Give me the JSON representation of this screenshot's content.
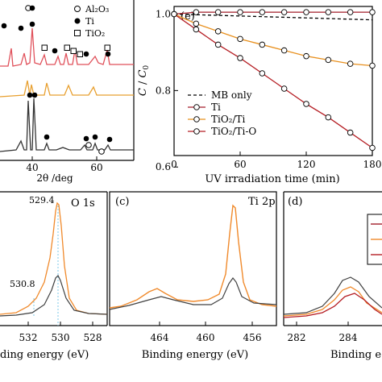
{
  "colors": {
    "ti": "#a31f2a",
    "tio2_ti": "#e8901e",
    "tio2_ti_o": "#b51e24",
    "xrd_red": "#e0505a",
    "xrd_orange": "#e8a030",
    "xrd_black": "#333333",
    "xps_orange": "#f08a2c",
    "xps_black": "#404040",
    "xps_ref": "#7ec8e8"
  },
  "xrd": {
    "xlabel": "2θ /deg",
    "xticks": [
      "40",
      "60"
    ],
    "legend": [
      {
        "marker": "open-circle",
        "label": "Al₂O₃"
      },
      {
        "marker": "filled-circle",
        "label": "Ti"
      },
      {
        "marker": "open-square",
        "label": "TiO₂"
      }
    ]
  },
  "panel_e": {
    "label": "(e)",
    "xlabel": "UV irradiation time (min)",
    "ylabel_c": "C",
    "ylabel_slash": " / ",
    "ylabel_c0": "C",
    "ylabel_sub": "0",
    "xticks": [
      "0",
      "60",
      "120",
      "180"
    ],
    "yticks": [
      "1.0",
      "0.8",
      "0.6"
    ],
    "legend": [
      {
        "style": "dashed",
        "label": "MB only"
      },
      {
        "style": "ti",
        "label": "Ti"
      },
      {
        "style": "tio2_ti",
        "label": "TiO₂/Ti"
      },
      {
        "style": "tio2_ti_o",
        "label": "TiO₂/Ti-O"
      }
    ]
  },
  "panel_o1s": {
    "title": "O 1s",
    "peak1": "529.4",
    "peak2": "530.8",
    "xlabel": "ding energy (eV)",
    "xticks": [
      "532",
      "530",
      "528"
    ]
  },
  "panel_c": {
    "label": "(c)",
    "title": "Ti 2p",
    "xlabel": "Binding energy (eV)",
    "xticks": [
      "464",
      "460",
      "456"
    ]
  },
  "panel_d": {
    "label": "(d)",
    "xlabel": "Binding e",
    "xticks": [
      "282",
      "284"
    ]
  },
  "chart_data": [
    {
      "type": "line",
      "panel": "e",
      "xlabel": "UV irradiation time (min)",
      "ylabel": "C / C0",
      "xlim": [
        0,
        180
      ],
      "ylim": [
        0.63,
        1.02
      ],
      "series": [
        {
          "name": "MB only",
          "x": [
            0,
            180
          ],
          "values": [
            1.0,
            0.985
          ]
        },
        {
          "name": "Ti",
          "x": [
            0,
            20,
            40,
            60,
            80,
            100,
            120,
            140,
            160,
            180
          ],
          "values": [
            1.0,
            1.005,
            1.005,
            1.005,
            1.005,
            1.005,
            1.005,
            1.005,
            1.005,
            1.005
          ]
        },
        {
          "name": "TiO2/Ti",
          "x": [
            0,
            20,
            40,
            60,
            80,
            100,
            120,
            140,
            160,
            180
          ],
          "values": [
            1.0,
            0.975,
            0.955,
            0.935,
            0.92,
            0.905,
            0.89,
            0.88,
            0.87,
            0.865
          ]
        },
        {
          "name": "TiO2/Ti-O",
          "x": [
            0,
            20,
            40,
            60,
            80,
            100,
            120,
            140,
            160,
            180
          ],
          "values": [
            1.0,
            0.96,
            0.92,
            0.885,
            0.845,
            0.805,
            0.765,
            0.73,
            0.69,
            0.65
          ]
        }
      ]
    }
  ]
}
